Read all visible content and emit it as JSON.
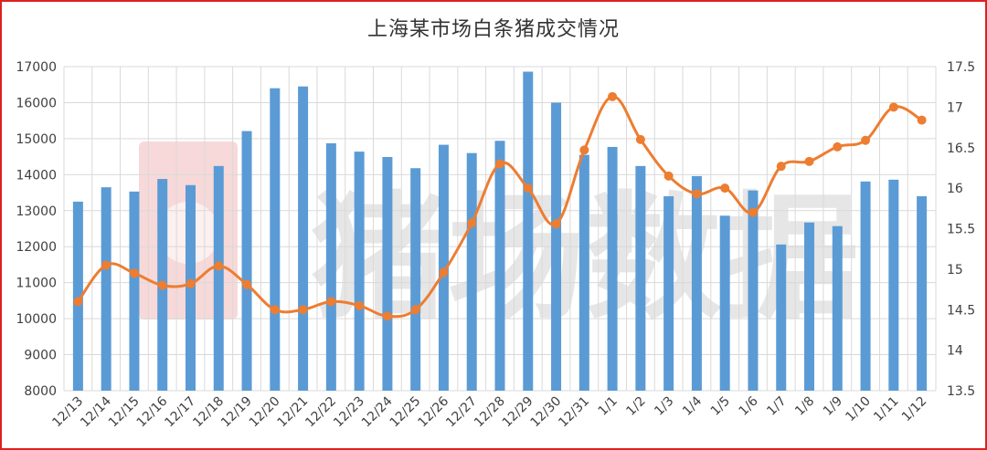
{
  "chart_data": {
    "type": "bar+line",
    "title": "上海某市场白条猪成交情况",
    "categories": [
      "12/13",
      "12/14",
      "12/15",
      "12/16",
      "12/17",
      "12/18",
      "12/19",
      "12/20",
      "12/21",
      "12/22",
      "12/23",
      "12/24",
      "12/25",
      "12/26",
      "12/27",
      "12/28",
      "12/29",
      "12/30",
      "12/31",
      "1/1",
      "1/2",
      "1/3",
      "1/4",
      "1/5",
      "1/6",
      "1/7",
      "1/8",
      "1/9",
      "1/10",
      "1/11",
      "1/12"
    ],
    "series": [
      {
        "type": "bar",
        "axis": "left",
        "color": "#5b9bd5",
        "values": [
          13250,
          13650,
          13530,
          13880,
          13710,
          14240,
          15210,
          16400,
          16450,
          14870,
          14640,
          14490,
          14180,
          14830,
          14600,
          14940,
          16860,
          16000,
          14550,
          14770,
          14240,
          13400,
          13960,
          12860,
          13560,
          12060,
          12670,
          12570,
          13810,
          13860,
          13400
        ]
      },
      {
        "type": "line",
        "axis": "right",
        "color": "#ed7d31",
        "values": [
          14.6,
          15.05,
          14.95,
          14.8,
          14.82,
          15.04,
          14.81,
          14.5,
          14.5,
          14.6,
          14.55,
          14.42,
          14.5,
          14.96,
          15.57,
          16.3,
          16.0,
          15.56,
          16.47,
          17.13,
          16.6,
          16.15,
          15.93,
          16.0,
          15.7,
          16.27,
          16.33,
          16.51,
          16.59,
          17.0,
          16.84
        ]
      }
    ],
    "y_left": {
      "min": 8000,
      "max": 17000,
      "ticks": [
        8000,
        9000,
        10000,
        11000,
        12000,
        13000,
        14000,
        15000,
        16000,
        17000
      ]
    },
    "y_right": {
      "min": 13.5,
      "max": 17.5,
      "ticks": [
        "13.5",
        "14",
        "14.5",
        "15",
        "15.5",
        "16",
        "16.5",
        "17",
        "17.5"
      ]
    },
    "grid": true,
    "legend": "none"
  },
  "watermark": {
    "text": "猪场数据",
    "logo_color": "#f3c9c9"
  },
  "colors": {
    "border": "#e02020",
    "bar": "#5b9bd5",
    "line": "#ed7d31",
    "grid": "#d9d9d9"
  }
}
